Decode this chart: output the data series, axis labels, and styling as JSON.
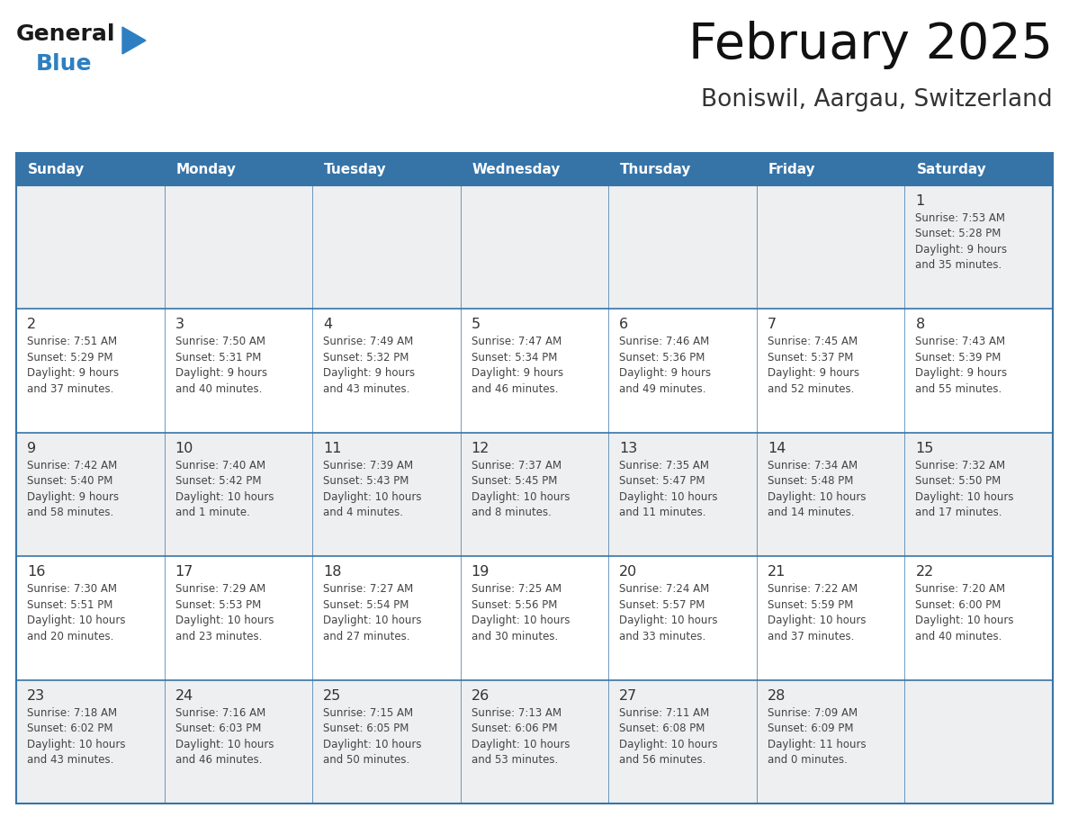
{
  "title": "February 2025",
  "subtitle": "Boniswil, Aargau, Switzerland",
  "days_of_week": [
    "Sunday",
    "Monday",
    "Tuesday",
    "Wednesday",
    "Thursday",
    "Friday",
    "Saturday"
  ],
  "header_bg_color": "#3674A8",
  "header_text_color": "#FFFFFF",
  "cell_bg_odd": "#EEEFF0",
  "cell_bg_even": "#FFFFFF",
  "border_color": "#3674A8",
  "day_num_color": "#333333",
  "text_color": "#444444",
  "logo_color_general": "#1a1a1a",
  "logo_color_blue": "#2E7FC1",
  "logo_triangle_color": "#2E7FC1",
  "weeks": [
    [
      {
        "day": null,
        "info": ""
      },
      {
        "day": null,
        "info": ""
      },
      {
        "day": null,
        "info": ""
      },
      {
        "day": null,
        "info": ""
      },
      {
        "day": null,
        "info": ""
      },
      {
        "day": null,
        "info": ""
      },
      {
        "day": 1,
        "info": "Sunrise: 7:53 AM\nSunset: 5:28 PM\nDaylight: 9 hours\nand 35 minutes."
      }
    ],
    [
      {
        "day": 2,
        "info": "Sunrise: 7:51 AM\nSunset: 5:29 PM\nDaylight: 9 hours\nand 37 minutes."
      },
      {
        "day": 3,
        "info": "Sunrise: 7:50 AM\nSunset: 5:31 PM\nDaylight: 9 hours\nand 40 minutes."
      },
      {
        "day": 4,
        "info": "Sunrise: 7:49 AM\nSunset: 5:32 PM\nDaylight: 9 hours\nand 43 minutes."
      },
      {
        "day": 5,
        "info": "Sunrise: 7:47 AM\nSunset: 5:34 PM\nDaylight: 9 hours\nand 46 minutes."
      },
      {
        "day": 6,
        "info": "Sunrise: 7:46 AM\nSunset: 5:36 PM\nDaylight: 9 hours\nand 49 minutes."
      },
      {
        "day": 7,
        "info": "Sunrise: 7:45 AM\nSunset: 5:37 PM\nDaylight: 9 hours\nand 52 minutes."
      },
      {
        "day": 8,
        "info": "Sunrise: 7:43 AM\nSunset: 5:39 PM\nDaylight: 9 hours\nand 55 minutes."
      }
    ],
    [
      {
        "day": 9,
        "info": "Sunrise: 7:42 AM\nSunset: 5:40 PM\nDaylight: 9 hours\nand 58 minutes."
      },
      {
        "day": 10,
        "info": "Sunrise: 7:40 AM\nSunset: 5:42 PM\nDaylight: 10 hours\nand 1 minute."
      },
      {
        "day": 11,
        "info": "Sunrise: 7:39 AM\nSunset: 5:43 PM\nDaylight: 10 hours\nand 4 minutes."
      },
      {
        "day": 12,
        "info": "Sunrise: 7:37 AM\nSunset: 5:45 PM\nDaylight: 10 hours\nand 8 minutes."
      },
      {
        "day": 13,
        "info": "Sunrise: 7:35 AM\nSunset: 5:47 PM\nDaylight: 10 hours\nand 11 minutes."
      },
      {
        "day": 14,
        "info": "Sunrise: 7:34 AM\nSunset: 5:48 PM\nDaylight: 10 hours\nand 14 minutes."
      },
      {
        "day": 15,
        "info": "Sunrise: 7:32 AM\nSunset: 5:50 PM\nDaylight: 10 hours\nand 17 minutes."
      }
    ],
    [
      {
        "day": 16,
        "info": "Sunrise: 7:30 AM\nSunset: 5:51 PM\nDaylight: 10 hours\nand 20 minutes."
      },
      {
        "day": 17,
        "info": "Sunrise: 7:29 AM\nSunset: 5:53 PM\nDaylight: 10 hours\nand 23 minutes."
      },
      {
        "day": 18,
        "info": "Sunrise: 7:27 AM\nSunset: 5:54 PM\nDaylight: 10 hours\nand 27 minutes."
      },
      {
        "day": 19,
        "info": "Sunrise: 7:25 AM\nSunset: 5:56 PM\nDaylight: 10 hours\nand 30 minutes."
      },
      {
        "day": 20,
        "info": "Sunrise: 7:24 AM\nSunset: 5:57 PM\nDaylight: 10 hours\nand 33 minutes."
      },
      {
        "day": 21,
        "info": "Sunrise: 7:22 AM\nSunset: 5:59 PM\nDaylight: 10 hours\nand 37 minutes."
      },
      {
        "day": 22,
        "info": "Sunrise: 7:20 AM\nSunset: 6:00 PM\nDaylight: 10 hours\nand 40 minutes."
      }
    ],
    [
      {
        "day": 23,
        "info": "Sunrise: 7:18 AM\nSunset: 6:02 PM\nDaylight: 10 hours\nand 43 minutes."
      },
      {
        "day": 24,
        "info": "Sunrise: 7:16 AM\nSunset: 6:03 PM\nDaylight: 10 hours\nand 46 minutes."
      },
      {
        "day": 25,
        "info": "Sunrise: 7:15 AM\nSunset: 6:05 PM\nDaylight: 10 hours\nand 50 minutes."
      },
      {
        "day": 26,
        "info": "Sunrise: 7:13 AM\nSunset: 6:06 PM\nDaylight: 10 hours\nand 53 minutes."
      },
      {
        "day": 27,
        "info": "Sunrise: 7:11 AM\nSunset: 6:08 PM\nDaylight: 10 hours\nand 56 minutes."
      },
      {
        "day": 28,
        "info": "Sunrise: 7:09 AM\nSunset: 6:09 PM\nDaylight: 11 hours\nand 0 minutes."
      },
      {
        "day": null,
        "info": ""
      }
    ]
  ]
}
